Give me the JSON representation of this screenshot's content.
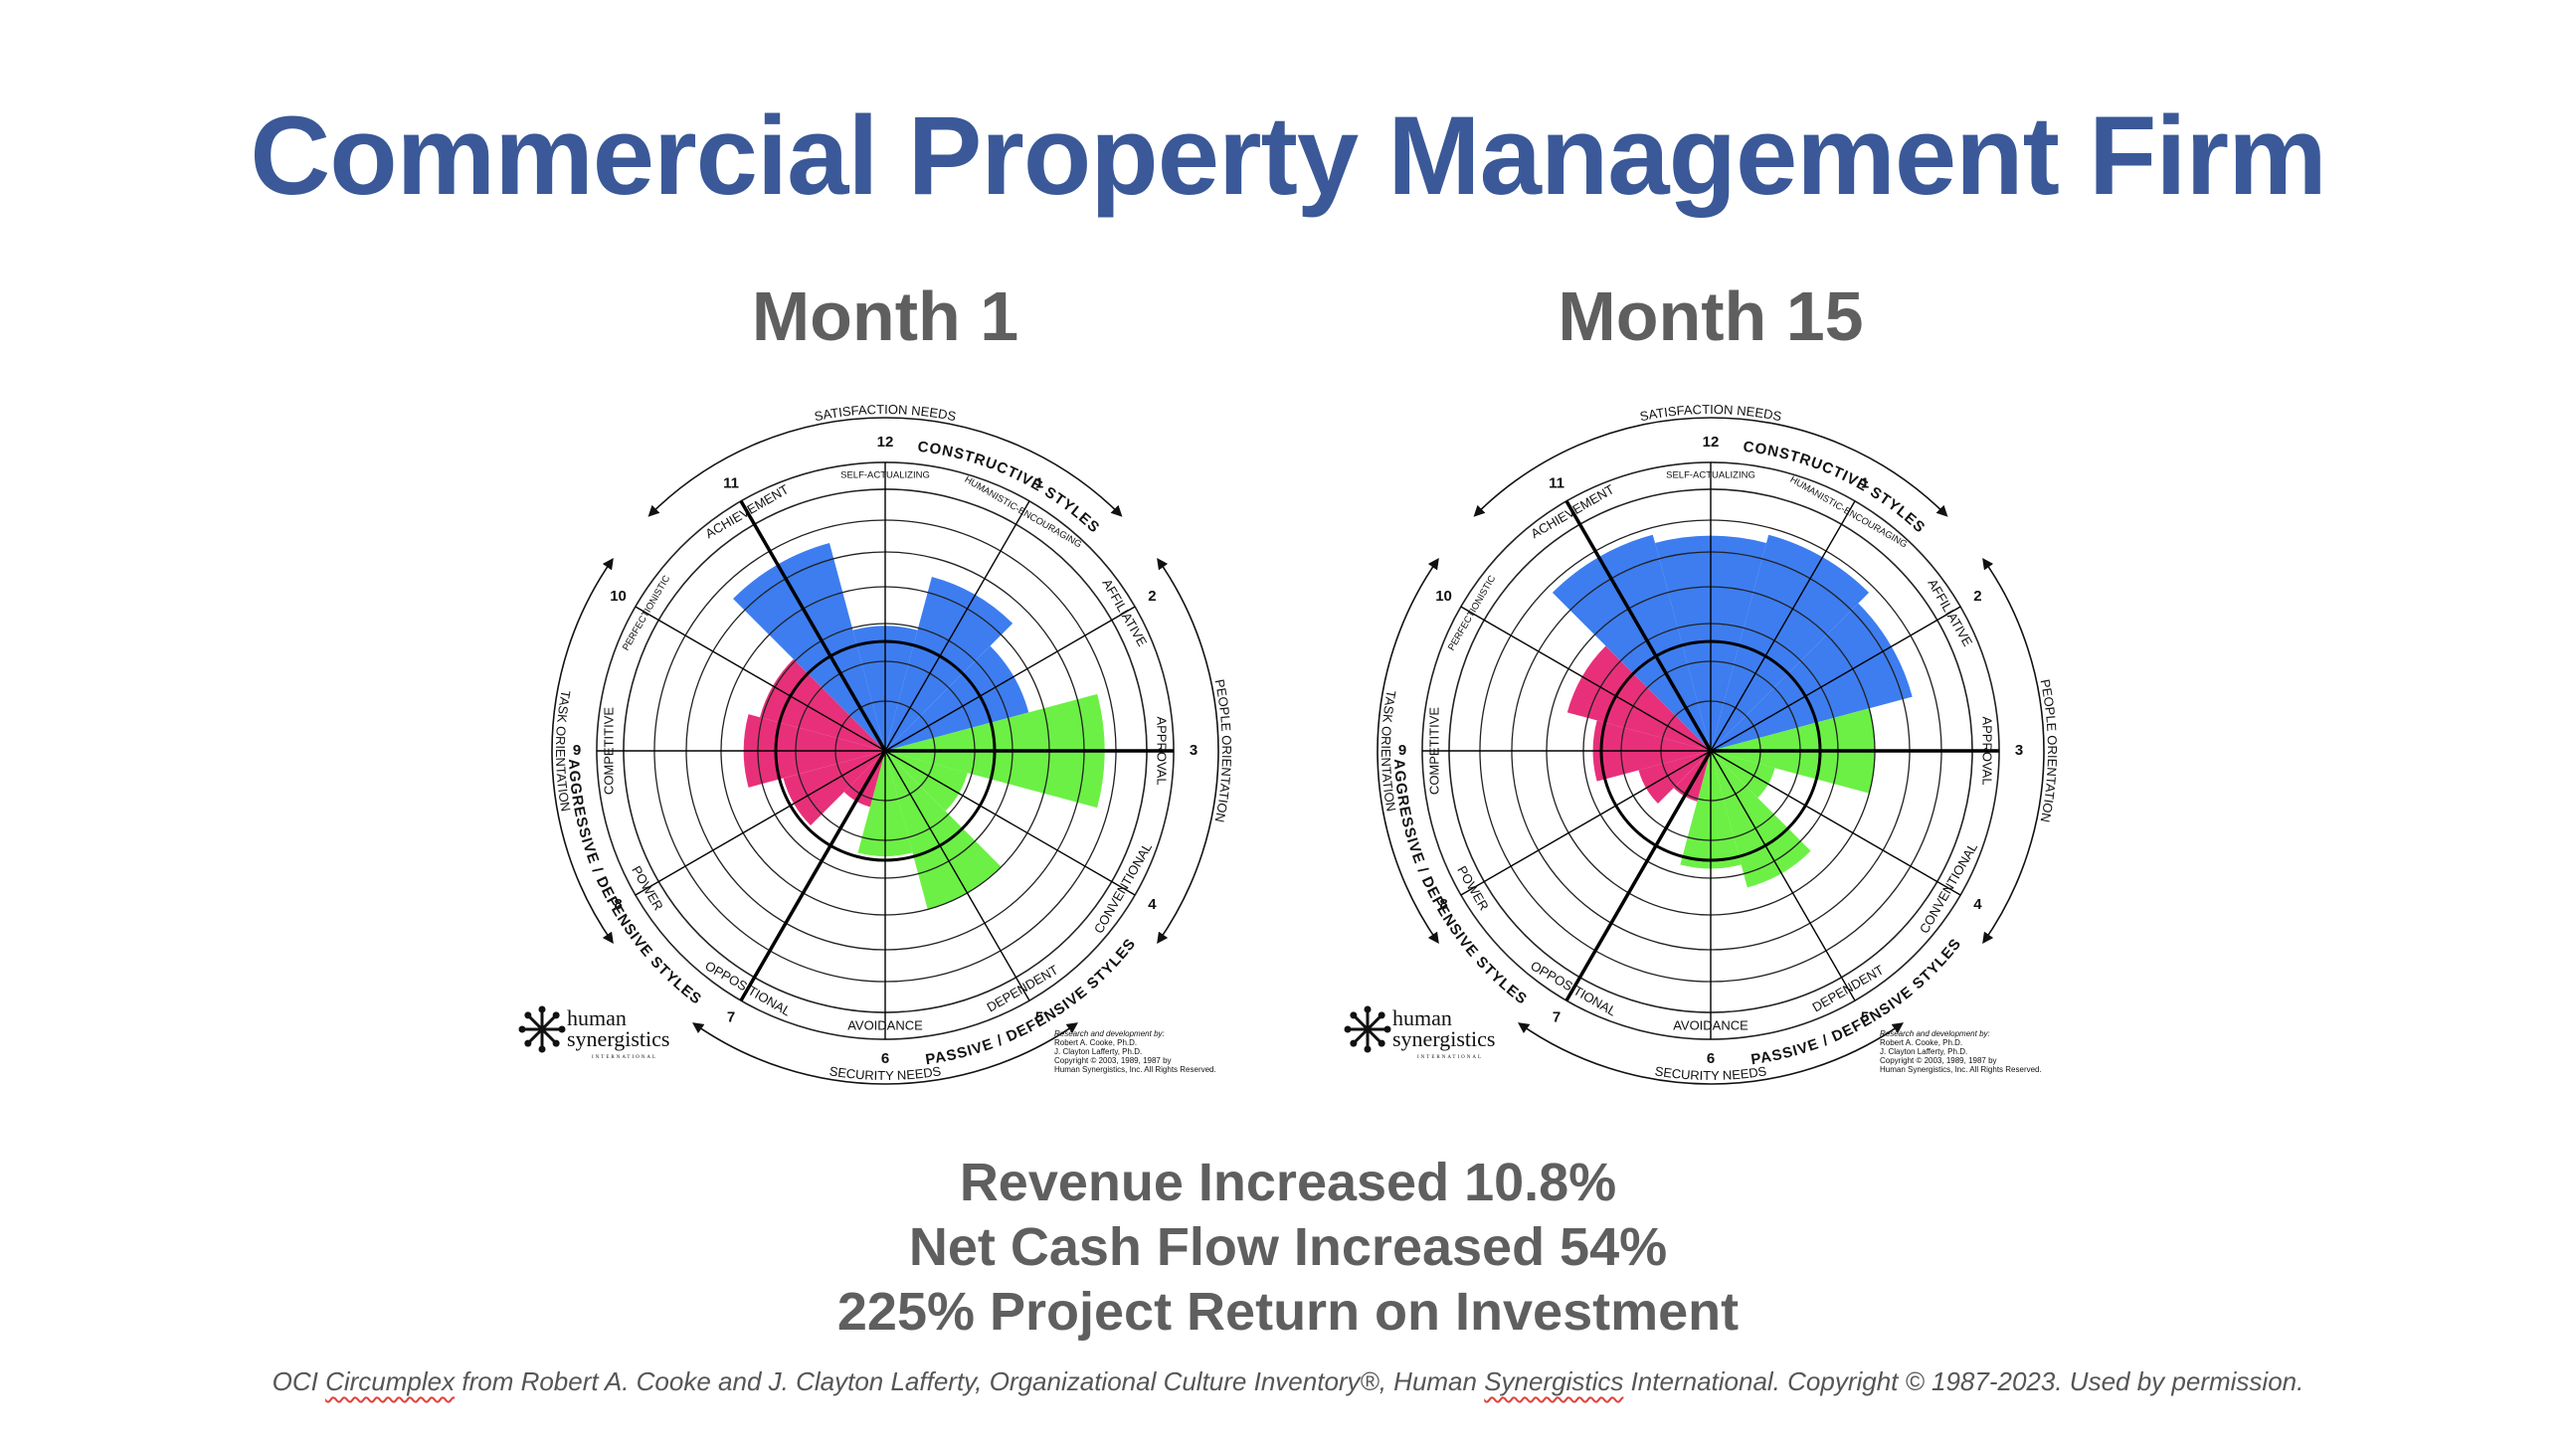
{
  "title": "Commercial Property Management Firm",
  "colors": {
    "title": "#3b5998",
    "text_gray": "#5f5f5f",
    "constructive": "#3d7df0",
    "passive_defensive": "#6cf045",
    "aggressive_defensive": "#e8307a"
  },
  "circumplex_labels": {
    "satisfaction_needs": "SATISFACTION NEEDS",
    "security_needs": "SECURITY NEEDS",
    "people_orientation": "PEOPLE ORIENTATION",
    "task_orientation": "TASK ORIENTATION",
    "constructive_styles": "CONSTRUCTIVE STYLES",
    "passive_defensive_styles": "PASSIVE / DEFENSIVE STYLES",
    "aggressive_defensive_styles": "AGGRESSIVE / DEFENSIVE STYLES",
    "styles": [
      {
        "num": "1",
        "name": "HUMANISTIC-ENCOURAGING"
      },
      {
        "num": "2",
        "name": "AFFILIATIVE"
      },
      {
        "num": "3",
        "name": "APPROVAL"
      },
      {
        "num": "4",
        "name": "CONVENTIONAL"
      },
      {
        "num": "5",
        "name": "DEPENDENT"
      },
      {
        "num": "6",
        "name": "AVOIDANCE"
      },
      {
        "num": "7",
        "name": "OPPOSITIONAL"
      },
      {
        "num": "8",
        "name": "POWER"
      },
      {
        "num": "9",
        "name": "COMPETITIVE"
      },
      {
        "num": "10",
        "name": "PERFECTIONISTIC"
      },
      {
        "num": "11",
        "name": "ACHIEVEMENT"
      },
      {
        "num": "12",
        "name": "SELF-ACTUALIZING"
      }
    ],
    "logo_line1": "human",
    "logo_line2": "synergistics",
    "logo_line3": "INTERNATIONAL",
    "credit": [
      "Research and development by:",
      "Robert A. Cooke, Ph.D.",
      "J. Clayton Lafferty, Ph.D.",
      "Copyright © 2003, 1989, 1987 by",
      "Human Synergistics, Inc. All Rights Reserved."
    ]
  },
  "chart_data": [
    {
      "type": "radial-bar",
      "title": "Month 1",
      "categories": [
        "1 Humanistic-Encouraging",
        "2 Affiliative",
        "3 Approval",
        "4 Conventional",
        "5 Dependent",
        "6 Avoidance",
        "7 Oppositional",
        "8 Power",
        "9 Competitive",
        "10 Perfectionistic",
        "11 Achievement",
        "12 Self-Actualizing"
      ],
      "values_percentile": [
        62,
        48,
        80,
        22,
        55,
        30,
        12,
        30,
        45,
        40,
        78,
        38
      ],
      "rlim": [
        0,
        100
      ],
      "series": [
        {
          "name": "Constructive Styles",
          "categories": [
            "1",
            "2",
            "11",
            "12"
          ],
          "color": "#3d7df0"
        },
        {
          "name": "Passive/Defensive Styles",
          "categories": [
            "3",
            "4",
            "5",
            "6"
          ],
          "color": "#6cf045"
        },
        {
          "name": "Aggressive/Defensive Styles",
          "categories": [
            "7",
            "8",
            "9",
            "10"
          ],
          "color": "#e8307a"
        }
      ]
    },
    {
      "type": "radial-bar",
      "title": "Month 15",
      "categories": [
        "1 Humanistic-Encouraging",
        "2 Affiliative",
        "3 Approval",
        "4 Conventional",
        "5 Dependent",
        "6 Avoidance",
        "7 Oppositional",
        "8 Power",
        "9 Competitive",
        "10 Perfectionistic",
        "11 Achievement",
        "12 Self-Actualizing"
      ],
      "values_percentile": [
        82,
        75,
        55,
        15,
        45,
        35,
        10,
        18,
        35,
        48,
        82,
        78
      ],
      "rlim": [
        0,
        100
      ],
      "series": [
        {
          "name": "Constructive Styles",
          "categories": [
            "1",
            "2",
            "11",
            "12"
          ],
          "color": "#3d7df0"
        },
        {
          "name": "Passive/Defensive Styles",
          "categories": [
            "3",
            "4",
            "5",
            "6"
          ],
          "color": "#6cf045"
        },
        {
          "name": "Aggressive/Defensive Styles",
          "categories": [
            "7",
            "8",
            "9",
            "10"
          ],
          "color": "#e8307a"
        }
      ]
    }
  ],
  "results": [
    "Revenue Increased 10.8%",
    "Net Cash Flow Increased 54%",
    "225% Project Return on Investment"
  ],
  "footer": {
    "part1": "OCI ",
    "word1": "Circumplex",
    "part2": " from Robert A. Cooke and J. Clayton Lafferty, Organizational Culture Inventory®, Human ",
    "word2": "Synergistics",
    "part3": " International. Copyright © 1987-2023. Used by permission."
  }
}
